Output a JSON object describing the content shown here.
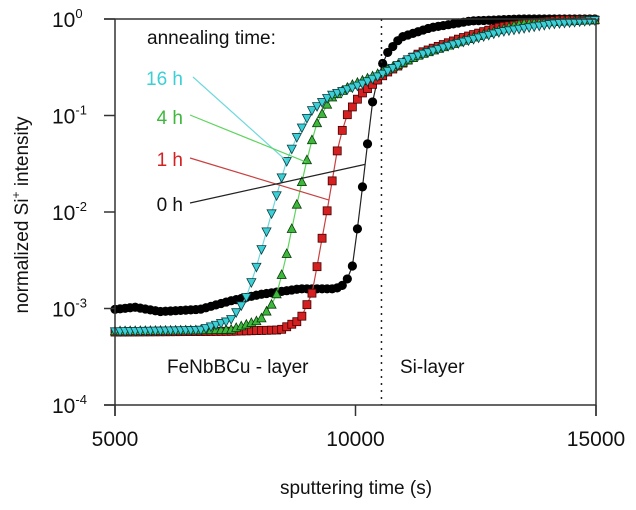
{
  "chart_data": {
    "type": "scatter",
    "title": "",
    "xlabel": "sputtering time (s)",
    "ylabel_main": "normalized Si",
    "ylabel_sup": "+",
    "ylabel_tail": " intensity",
    "xlim": [
      5000,
      15000
    ],
    "ylim": [
      0.0001,
      1
    ],
    "yscale": "log",
    "grid": false,
    "x_ticks": [
      {
        "value": 5000,
        "label": "5000"
      },
      {
        "value": 10000,
        "label": "10000"
      },
      {
        "value": 15000,
        "label": "15000"
      }
    ],
    "y_ticks": [
      {
        "value": 1,
        "base": "10",
        "exp": "0"
      },
      {
        "value": 0.1,
        "base": "10",
        "exp": "-1"
      },
      {
        "value": 0.01,
        "base": "10",
        "exp": "-2"
      },
      {
        "value": 0.001,
        "base": "10",
        "exp": "-3"
      },
      {
        "value": 0.0001,
        "base": "10",
        "exp": "-4"
      }
    ],
    "legend_title": "annealing time:",
    "legend_placement": "top-left",
    "series": [
      {
        "name": "16 h",
        "color": "#3ccfd6",
        "line_color": "#6fd8dc",
        "marker": "triangle-down",
        "points": [
          [
            5000,
            0.00058
          ],
          [
            6770,
            0.0006
          ],
          [
            7400,
            0.00076
          ],
          [
            7710,
            0.00123
          ],
          [
            7920,
            0.0025
          ],
          [
            8130,
            0.0058
          ],
          [
            8330,
            0.0132
          ],
          [
            8540,
            0.031
          ],
          [
            8750,
            0.056
          ],
          [
            9060,
            0.11
          ],
          [
            9480,
            0.162
          ],
          [
            10100,
            0.209
          ],
          [
            10520,
            0.263
          ],
          [
            11150,
            0.398
          ],
          [
            11980,
            0.537
          ],
          [
            13020,
            0.741
          ],
          [
            14060,
            0.891
          ],
          [
            15000,
            0.977
          ]
        ]
      },
      {
        "name": "4 h",
        "color": "#3db83d",
        "line_color": "#5fd45f",
        "marker": "triangle-up",
        "points": [
          [
            5000,
            0.00058
          ],
          [
            7400,
            0.0006
          ],
          [
            8020,
            0.00076
          ],
          [
            8330,
            0.00123
          ],
          [
            8540,
            0.0031
          ],
          [
            8750,
            0.0102
          ],
          [
            8960,
            0.03
          ],
          [
            9170,
            0.078
          ],
          [
            9480,
            0.15
          ],
          [
            9900,
            0.204
          ],
          [
            10420,
            0.263
          ],
          [
            11350,
            0.427
          ],
          [
            12400,
            0.631
          ],
          [
            13440,
            0.891
          ],
          [
            15000,
            0.977
          ]
        ]
      },
      {
        "name": "1 h",
        "color": "#d42020",
        "line_color": "#c84040",
        "marker": "square",
        "points": [
          [
            5000,
            0.00057
          ],
          [
            7400,
            0.00058
          ],
          [
            8440,
            0.0006
          ],
          [
            8850,
            0.00076
          ],
          [
            9110,
            0.0015
          ],
          [
            9270,
            0.0043
          ],
          [
            9440,
            0.0124
          ],
          [
            9610,
            0.041
          ],
          [
            9790,
            0.095
          ],
          [
            10100,
            0.164
          ],
          [
            10630,
            0.275
          ],
          [
            11350,
            0.447
          ],
          [
            12190,
            0.631
          ],
          [
            13020,
            0.832
          ],
          [
            14270,
            0.977
          ],
          [
            15000,
            0.977
          ]
        ]
      },
      {
        "name": "0 h",
        "color": "#000000",
        "line_color": "#222222",
        "marker": "circle",
        "points": [
          [
            5000,
            0.00098
          ],
          [
            5420,
            0.00103
          ],
          [
            5940,
            0.00093
          ],
          [
            6770,
            0.00098
          ],
          [
            7400,
            0.0012
          ],
          [
            8020,
            0.0014
          ],
          [
            8850,
            0.0016
          ],
          [
            9580,
            0.0016
          ],
          [
            9790,
            0.0018
          ],
          [
            9940,
            0.0028
          ],
          [
            10050,
            0.0073
          ],
          [
            10150,
            0.0191
          ],
          [
            10260,
            0.056
          ],
          [
            10360,
            0.145
          ],
          [
            10480,
            0.263
          ],
          [
            10630,
            0.427
          ],
          [
            10940,
            0.646
          ],
          [
            11560,
            0.813
          ],
          [
            12400,
            0.955
          ],
          [
            13440,
            1.0
          ],
          [
            15000,
            1.0
          ]
        ]
      }
    ],
    "annotations": [
      {
        "text": "FeNbBCu - layer",
        "region": "left of boundary"
      },
      {
        "text": "Si-layer",
        "region": "right of boundary"
      }
    ],
    "boundary_x": 10540
  }
}
